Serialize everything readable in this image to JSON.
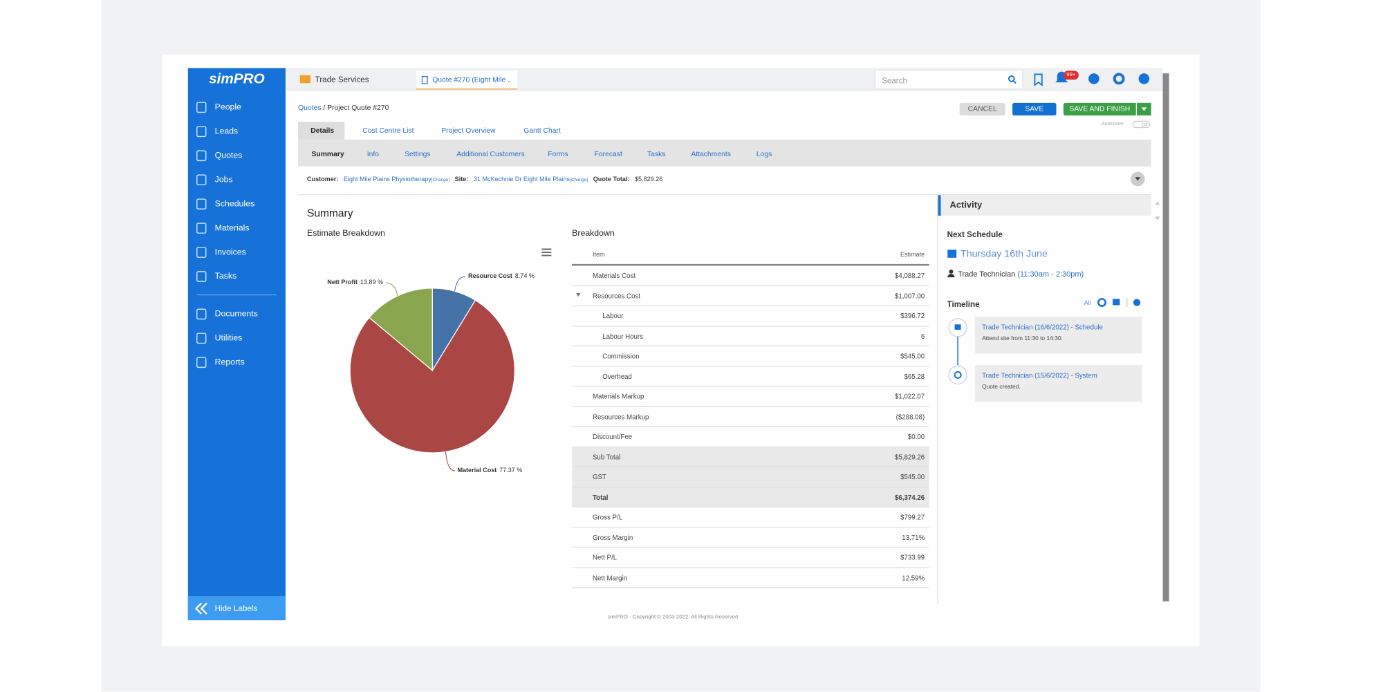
{
  "sidebar": {
    "logo": "simPRO",
    "items": [
      "People",
      "Leads",
      "Quotes",
      "Jobs",
      "Schedules",
      "Materials",
      "Invoices",
      "Tasks",
      "Documents",
      "Utilities",
      "Reports"
    ],
    "hide_labels": "Hide Labels"
  },
  "top_tabs": [
    "Trade Services",
    "Quote #270 (Eight Mile ..."
  ],
  "search_placeholder": "Search",
  "notification_badge": "99+",
  "breadcrumb": {
    "link": "Quotes",
    "current": "/ Project Quote #270"
  },
  "buttons": {
    "cancel": "CANCEL",
    "save": "SAVE",
    "save_and_finish": "SAVE AND FINISH"
  },
  "autosave": {
    "label": "Autosave",
    "toggle": "Off"
  },
  "main_tabs": [
    "Details",
    "Cost Centre List",
    "Project Overview",
    "Gantt Chart"
  ],
  "sub_tabs": [
    "Summary",
    "Info",
    "Settings",
    "Additional Customers",
    "Forms",
    "Forecast",
    "Tasks",
    "Attachments",
    "Logs"
  ],
  "info_bar": {
    "customer_label": "Customer:",
    "customer": "Eight Mile Plains Physiotherapy",
    "customer_change": "[Change]",
    "site_label": "Site:",
    "site": "31 McKechnie Dr Eight Mile Plains",
    "site_change": "[Change]",
    "quote_total_label": "Quote Total:",
    "quote_total": "$5,829.26"
  },
  "summary": {
    "title": "Summary",
    "estimate_title": "Estimate Breakdown",
    "chart": {
      "type": "pie",
      "slices": [
        {
          "name": "Resource Cost",
          "value": 8.74,
          "value_label": "8.74 %",
          "color": "#4572a7"
        },
        {
          "name": "Material Cost",
          "value": 77.37,
          "value_label": "77.37 %",
          "color": "#aa4643"
        },
        {
          "name": "Nett Profit",
          "value": 13.89,
          "value_label": "13.89 %",
          "color": "#89a54e"
        }
      ]
    }
  },
  "breakdown": {
    "title": "Breakdown",
    "columns": [
      "Item",
      "Estimate"
    ],
    "rows": [
      [
        "Materials Cost",
        "$4,088.27"
      ],
      [
        "Resources Cost",
        "$1,007.00"
      ],
      [
        "Labour",
        "$396.72"
      ],
      [
        "Labour Hours",
        "6"
      ],
      [
        "Commission",
        "$545.00"
      ],
      [
        "Overhead",
        "$65.28"
      ],
      [
        "Materials Markup",
        "$1,022.07"
      ],
      [
        "Resources Markup",
        "($288.08)"
      ],
      [
        "Discount/Fee",
        "$0.00"
      ],
      [
        "Sub Total",
        "$5,829.26"
      ],
      [
        "GST",
        "$545.00"
      ],
      [
        "Total",
        "$6,374.26"
      ],
      [
        "Gross P/L",
        "$799.27"
      ],
      [
        "Gross Margin",
        "13.71%"
      ],
      [
        "Nett P/L",
        "$733.99"
      ],
      [
        "Nett Margin",
        "12.59%"
      ]
    ]
  },
  "activity": {
    "title": "Activity",
    "next_schedule_title": "Next Schedule",
    "next_schedule_date": "Thursday 16th June",
    "next_schedule_who": "Trade Technician",
    "next_schedule_time": "(11:30am - 2:30pm)",
    "timeline_title": "Timeline",
    "timeline_filter": "All",
    "timeline": [
      {
        "title": "Trade Technician (16/6/2022) - Schedule",
        "text": "Attend site from 11:30 to 14:30."
      },
      {
        "title": "Trade Technician (15/6/2022) - System",
        "text": "Quote created."
      }
    ]
  },
  "footer": "simPRO - Copyright © 2003-2022. All Rights Reserved"
}
